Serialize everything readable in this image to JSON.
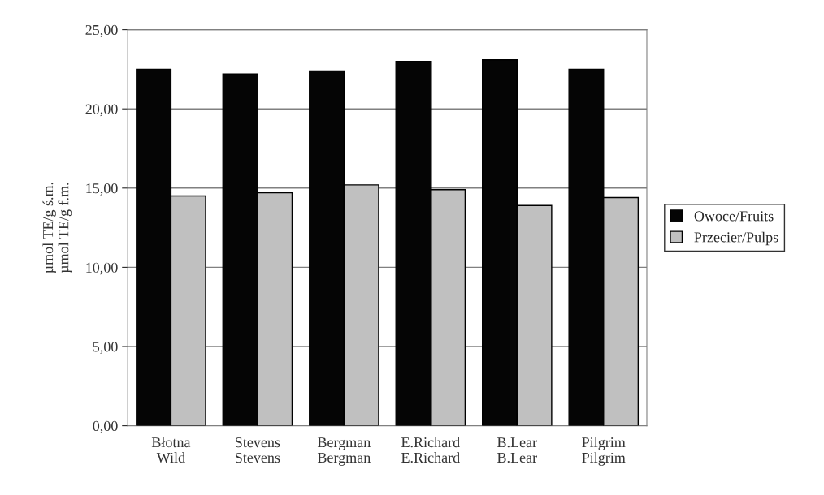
{
  "chart_data": {
    "type": "bar",
    "ylabel": "µmol TE/g ś.m.\nµmol TE/g f.m.",
    "categories": [
      "Błotna\nWild",
      "Stevens\nStevens",
      "Bergman\nBergman",
      "E.Richard\nE.Richard",
      "B.Lear\nB.Lear",
      "Pilgrim\nPilgrim"
    ],
    "series": [
      {
        "name": "Owoce/Fruits",
        "color": "#050505",
        "values": [
          22.5,
          22.2,
          22.4,
          23.0,
          23.1,
          22.5
        ]
      },
      {
        "name": "Przecier/Pulps",
        "color": "#c0c0c0",
        "values": [
          14.5,
          14.7,
          15.2,
          14.9,
          13.9,
          14.4
        ]
      }
    ],
    "ylim": [
      0,
      25
    ],
    "yticks": [
      {
        "value": 0,
        "label": "0,00"
      },
      {
        "value": 5,
        "label": "5,00"
      },
      {
        "value": 10,
        "label": "10,00"
      },
      {
        "value": 15,
        "label": "15,00"
      },
      {
        "value": 20,
        "label": "20,00"
      },
      {
        "value": 25,
        "label": "25,00"
      }
    ],
    "grid": "y",
    "legend": "right"
  }
}
